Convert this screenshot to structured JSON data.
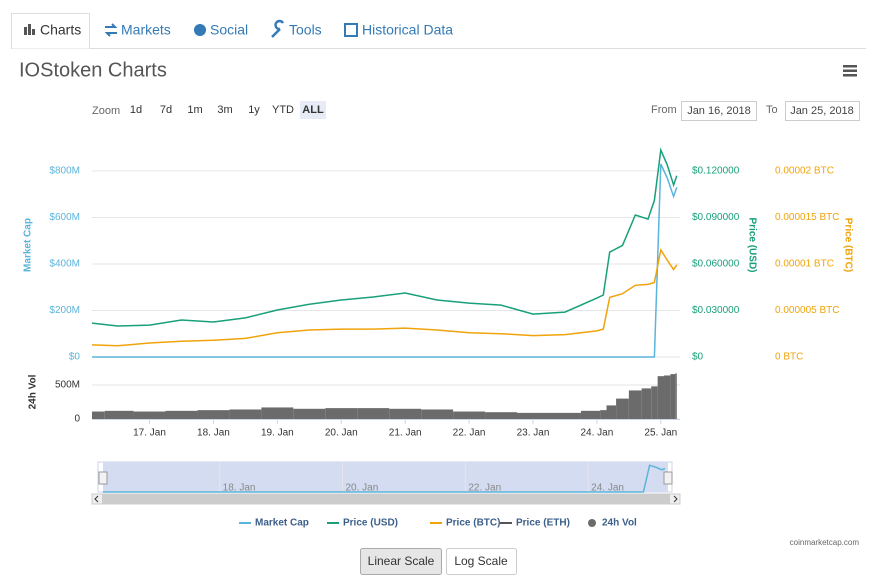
{
  "tabs": [
    "Charts",
    "Markets",
    "Social",
    "Tools",
    "Historical Data"
  ],
  "title": "IOStoken Charts",
  "zoom": {
    "label": "Zoom",
    "buttons": [
      "1d",
      "7d",
      "1m",
      "3m",
      "1y",
      "YTD",
      "ALL"
    ],
    "active": 6
  },
  "range": {
    "from_label": "From",
    "from": "Jan 16, 2018",
    "to_label": "To",
    "to": "Jan 25, 2018"
  },
  "credit": "coinmarketcap.com",
  "scale_buttons": [
    "Linear Scale",
    "Log Scale"
  ],
  "chart_data": {
    "type": "line",
    "x": [
      16.1,
      16.5,
      17,
      17.5,
      18,
      18.5,
      19,
      19.5,
      20,
      20.5,
      21,
      21.5,
      22,
      22.5,
      23,
      23.5,
      24,
      24.1,
      24.2,
      24.4,
      24.6,
      24.8,
      24.9,
      25,
      25.1,
      25.2,
      25.25
    ],
    "xlim": [
      16.1,
      25.3
    ],
    "xticks": [
      {
        "value": 17,
        "label": "17. Jan"
      },
      {
        "value": 18,
        "label": "18. Jan"
      },
      {
        "value": 19,
        "label": "19. Jan"
      },
      {
        "value": 20,
        "label": "20. Jan"
      },
      {
        "value": 21,
        "label": "21. Jan"
      },
      {
        "value": 22,
        "label": "22. Jan"
      },
      {
        "value": 23,
        "label": "23. Jan"
      },
      {
        "value": 24,
        "label": "24. Jan"
      },
      {
        "value": 25,
        "label": "25. Jan"
      }
    ],
    "navigator_xticks": [
      {
        "value": 18,
        "label": "18. Jan"
      },
      {
        "value": 20,
        "label": "20. Jan"
      },
      {
        "value": 22,
        "label": "22. Jan"
      },
      {
        "value": 24,
        "label": "24. Jan"
      }
    ],
    "ylabel": "Market Cap",
    "ylim": [
      0,
      933000000
    ],
    "yticks": [
      {
        "value": 0,
        "label": "$0"
      },
      {
        "value": 200000000,
        "label": "$200M"
      },
      {
        "value": 400000000,
        "label": "$400M"
      },
      {
        "value": 600000000,
        "label": "$600M"
      },
      {
        "value": 800000000,
        "label": "$800M"
      }
    ],
    "y2label": "Price (USD)",
    "y2lim": [
      0,
      0.14
    ],
    "y2ticks": [
      {
        "value": 0,
        "label": "$0"
      },
      {
        "value": 0.03,
        "label": "$0.030000"
      },
      {
        "value": 0.06,
        "label": "$0.060000"
      },
      {
        "value": 0.09,
        "label": "$0.090000"
      },
      {
        "value": 0.12,
        "label": "$0.120000"
      }
    ],
    "y3label": "Price (BTC)",
    "y3lim": [
      0,
      2.33e-05
    ],
    "y3ticks": [
      {
        "value": 0,
        "label": "0 BTC"
      },
      {
        "value": 5e-06,
        "label": "0.000005 BTC"
      },
      {
        "value": 1e-05,
        "label": "0.00001 BTC"
      },
      {
        "value": 1.5e-05,
        "label": "0.000015 BTC"
      },
      {
        "value": 2e-05,
        "label": "0.00002 BTC"
      }
    ],
    "vol_label": "24h Vol",
    "vol_ylim": [
      0,
      794000000
    ],
    "vol_yticks": [
      0,
      {
        "value": 500000000,
        "label": "500M"
      }
    ],
    "grid": true,
    "series": [
      {
        "name": "Market Cap",
        "color": "#5ab4dc",
        "axis": "y",
        "values": [
          0,
          0,
          0,
          0,
          0,
          0,
          0,
          0,
          0,
          0,
          0,
          0,
          0,
          0,
          0,
          0,
          0,
          0,
          0,
          0,
          0,
          0,
          0,
          830000000,
          770000000,
          690000000,
          730000000
        ]
      },
      {
        "name": "Price (USD)",
        "color": "#18a07a",
        "axis": "y2",
        "values": [
          0.0219,
          0.02,
          0.0206,
          0.0239,
          0.0226,
          0.0252,
          0.0303,
          0.034,
          0.0368,
          0.0387,
          0.0413,
          0.0368,
          0.0348,
          0.0335,
          0.0277,
          0.029,
          0.038,
          0.04,
          0.0677,
          0.072,
          0.0916,
          0.089,
          0.101,
          0.1335,
          0.124,
          0.111,
          0.117
        ]
      },
      {
        "name": "Price (BTC)",
        "color": "#f0a30a",
        "axis": "y3",
        "values": [
          1.3e-06,
          1.2e-06,
          1.5e-06,
          1.7e-06,
          1.8e-06,
          2e-06,
          2.6e-06,
          2.9e-06,
          3e-06,
          3e-06,
          3.1e-06,
          2.9e-06,
          2.6e-06,
          2.5e-06,
          2.3e-06,
          2.4e-06,
          2.8e-06,
          3e-06,
          6.4e-06,
          6.8e-06,
          7.7e-06,
          7.8e-06,
          8e-06,
          1.15e-05,
          1.04e-05,
          9.4e-06,
          9.9e-06
        ]
      },
      {
        "name": "Price (ETH)",
        "color": "#555555",
        "axis": "y2",
        "values": [
          null,
          null,
          null,
          null,
          null,
          null,
          null,
          null,
          null,
          null,
          null,
          null,
          null,
          null,
          null,
          null,
          null,
          null,
          null,
          null,
          null,
          null,
          null,
          null,
          null,
          null,
          null
        ]
      },
      {
        "name": "24h Vol",
        "color": "#6b6b6b",
        "axis": "vol",
        "type": "column",
        "values": [
          110000000,
          120000000,
          110000000,
          120000000,
          130000000,
          140000000,
          170000000,
          150000000,
          160000000,
          160000000,
          150000000,
          140000000,
          110000000,
          100000000,
          90000000,
          90000000,
          120000000,
          130000000,
          200000000,
          300000000,
          420000000,
          450000000,
          480000000,
          630000000,
          640000000,
          660000000,
          670000000
        ]
      }
    ]
  }
}
